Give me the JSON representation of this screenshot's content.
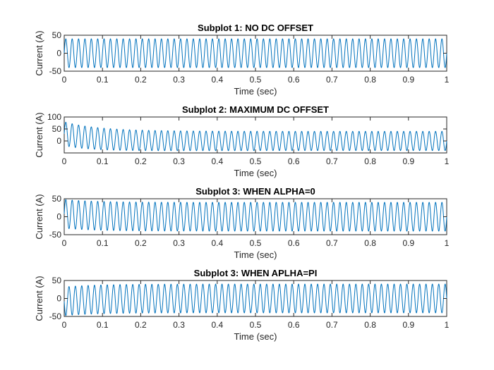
{
  "figure": {
    "background": "#ffffff",
    "axes_color": "#262626",
    "line_color": "#0072bd"
  },
  "chart_data": [
    {
      "type": "line",
      "title": "Subplot 1: NO DC OFFSET",
      "xlabel": "Time (sec)",
      "ylabel": "Current (A)",
      "xlim": [
        0,
        1
      ],
      "ylim": [
        -50,
        50
      ],
      "xticks": [
        0,
        0.1,
        0.2,
        0.3,
        0.4,
        0.5,
        0.6,
        0.7,
        0.8,
        0.9,
        1
      ],
      "yticks": [
        -50,
        0,
        50
      ],
      "grid": false,
      "series": [
        {
          "frequency_hz": 60,
          "amplitude": 40,
          "phase_deg": 0,
          "dc_initial": 0,
          "dc_tau_sec": 0.1,
          "values_note": ""
        }
      ]
    },
    {
      "type": "line",
      "title": "Subplot 2: MAXIMUM DC OFFSET",
      "xlabel": "Time (sec)",
      "ylabel": "Current (A)",
      "xlim": [
        0,
        1
      ],
      "ylim": [
        -50,
        100
      ],
      "xticks": [
        0,
        0.1,
        0.2,
        0.3,
        0.4,
        0.5,
        0.6,
        0.7,
        0.8,
        0.9,
        1
      ],
      "yticks": [
        0,
        50,
        100
      ],
      "grid": false,
      "series": [
        {
          "frequency_hz": 60,
          "amplitude": 40,
          "phase_deg": 0,
          "dc_initial": 30,
          "dc_tau_sec": 0.08,
          "amp_initial_extra": 10,
          "amp_tau_sec": 0.15
        }
      ]
    },
    {
      "type": "line",
      "title": "Subplot 3: WHEN ALPHA=0",
      "xlabel": "Time (sec)",
      "ylabel": "Current (A)",
      "xlim": [
        0,
        1
      ],
      "ylim": [
        -50,
        50
      ],
      "xticks": [
        0,
        0.1,
        0.2,
        0.3,
        0.4,
        0.5,
        0.6,
        0.7,
        0.8,
        0.9,
        1
      ],
      "yticks": [
        -50,
        0,
        50
      ],
      "grid": false,
      "series": [
        {
          "frequency_hz": 60,
          "amplitude": 40,
          "phase_deg": 0,
          "dc_initial": 8,
          "dc_tau_sec": 0.08
        }
      ]
    },
    {
      "type": "line",
      "title": "Subplot 3: WHEN APLHA=PI",
      "xlabel": "Time (sec)",
      "ylabel": "Current (A)",
      "xlim": [
        0,
        1
      ],
      "ylim": [
        -50,
        50
      ],
      "xticks": [
        0,
        0.1,
        0.2,
        0.3,
        0.4,
        0.5,
        0.6,
        0.7,
        0.8,
        0.9,
        1
      ],
      "yticks": [
        -50,
        0,
        50
      ],
      "grid": false,
      "series": [
        {
          "frequency_hz": 60,
          "amplitude": 40,
          "phase_deg": 180,
          "dc_initial": -8,
          "dc_tau_sec": 0.08
        }
      ]
    }
  ]
}
